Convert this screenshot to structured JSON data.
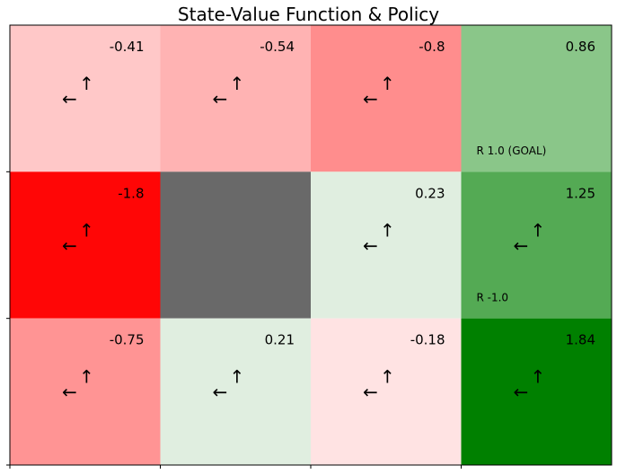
{
  "chart_data": {
    "type": "heatmap",
    "title": "State-Value Function & Policy",
    "rows": 3,
    "cols": 4,
    "cells": [
      [
        {
          "value": "-0.41",
          "color": "#ffc8c8",
          "policy": "←↑",
          "reward": ""
        },
        {
          "value": "-0.54",
          "color": "#ffb3b3",
          "policy": "←↑",
          "reward": ""
        },
        {
          "value": "-0.8",
          "color": "#ff8d8d",
          "policy": "←↑",
          "reward": ""
        },
        {
          "value": "0.86",
          "color": "#8ac689",
          "policy": "",
          "reward": "R 1.0 (GOAL)"
        }
      ],
      [
        {
          "value": "-1.8",
          "color": "#ff0606",
          "policy": "←↑",
          "reward": ""
        },
        {
          "value": "",
          "color": "#696969",
          "policy": "",
          "reward": "",
          "wall": true
        },
        {
          "value": "0.23",
          "color": "#e0eee0",
          "policy": "←↑",
          "reward": ""
        },
        {
          "value": "1.25",
          "color": "#54aa54",
          "policy": "←↑",
          "reward": "R -1.0"
        }
      ],
      [
        {
          "value": "-0.75",
          "color": "#ff9494",
          "policy": "←↑",
          "reward": ""
        },
        {
          "value": "0.21",
          "color": "#e0eee0",
          "policy": "←↑",
          "reward": ""
        },
        {
          "value": "-0.18",
          "color": "#ffe3e3",
          "policy": "←↑",
          "reward": ""
        },
        {
          "value": "1.84",
          "color": "#008000",
          "policy": "←↑",
          "reward": ""
        }
      ]
    ]
  }
}
